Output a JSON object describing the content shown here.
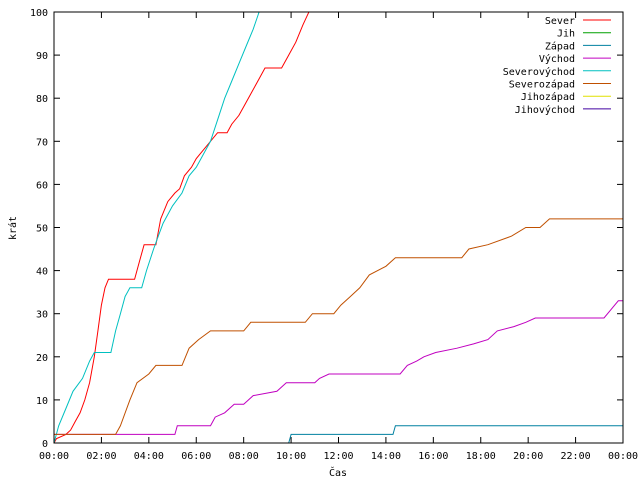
{
  "chart_data": {
    "type": "line",
    "title": "",
    "xlabel": "Čas",
    "ylabel": "krát",
    "xlim": [
      0,
      24
    ],
    "ylim": [
      0,
      100
    ],
    "grid": false,
    "legend_position": "top-right",
    "x_ticks": [
      {
        "value": 0,
        "label": "00:00"
      },
      {
        "value": 2,
        "label": "02:00"
      },
      {
        "value": 4,
        "label": "04:00"
      },
      {
        "value": 6,
        "label": "06:00"
      },
      {
        "value": 8,
        "label": "08:00"
      },
      {
        "value": 10,
        "label": "10:00"
      },
      {
        "value": 12,
        "label": "12:00"
      },
      {
        "value": 14,
        "label": "14:00"
      },
      {
        "value": 16,
        "label": "16:00"
      },
      {
        "value": 18,
        "label": "18:00"
      },
      {
        "value": 20,
        "label": "20:00"
      },
      {
        "value": 22,
        "label": "22:00"
      },
      {
        "value": 24,
        "label": "00:00"
      }
    ],
    "y_ticks": [
      0,
      10,
      20,
      30,
      40,
      50,
      60,
      70,
      80,
      90,
      100
    ],
    "series": [
      {
        "name": "Sever",
        "color": "#ff0000",
        "points": [
          [
            0,
            0
          ],
          [
            0.1,
            1
          ],
          [
            0.5,
            2
          ],
          [
            0.7,
            3
          ],
          [
            0.9,
            5
          ],
          [
            1.1,
            7
          ],
          [
            1.3,
            10
          ],
          [
            1.5,
            14
          ],
          [
            1.7,
            20
          ],
          [
            1.85,
            26
          ],
          [
            2.0,
            32
          ],
          [
            2.15,
            36
          ],
          [
            2.3,
            38
          ],
          [
            3.4,
            38
          ],
          [
            3.6,
            42
          ],
          [
            3.8,
            46
          ],
          [
            4.3,
            46
          ],
          [
            4.5,
            52
          ],
          [
            4.8,
            56
          ],
          [
            5.1,
            58
          ],
          [
            5.3,
            59
          ],
          [
            5.5,
            62
          ],
          [
            5.8,
            64
          ],
          [
            6.0,
            66
          ],
          [
            6.3,
            68
          ],
          [
            6.6,
            70
          ],
          [
            6.9,
            72
          ],
          [
            7.3,
            72
          ],
          [
            7.5,
            74
          ],
          [
            7.8,
            76
          ],
          [
            8.0,
            78
          ],
          [
            8.3,
            81
          ],
          [
            8.6,
            84
          ],
          [
            8.9,
            87
          ],
          [
            9.6,
            87
          ],
          [
            9.9,
            90
          ],
          [
            10.2,
            93
          ],
          [
            10.5,
            97
          ],
          [
            10.75,
            100
          ],
          [
            10.9,
            103
          ]
        ]
      },
      {
        "name": "Jih",
        "color": "#00a000",
        "points": []
      },
      {
        "name": "Západ",
        "color": "#0080a0",
        "points": [
          [
            0,
            0
          ],
          [
            9.9,
            0
          ],
          [
            10.0,
            2
          ],
          [
            14.3,
            2
          ],
          [
            14.4,
            4
          ],
          [
            24,
            4
          ]
        ]
      },
      {
        "name": "Východ",
        "color": "#c000c0",
        "points": [
          [
            0,
            2
          ],
          [
            5.1,
            2
          ],
          [
            5.2,
            4
          ],
          [
            6.6,
            4
          ],
          [
            6.8,
            6
          ],
          [
            7.2,
            7
          ],
          [
            7.6,
            9
          ],
          [
            8.0,
            9
          ],
          [
            8.4,
            11
          ],
          [
            9.4,
            12
          ],
          [
            9.8,
            14
          ],
          [
            11.0,
            14
          ],
          [
            11.2,
            15
          ],
          [
            11.6,
            16
          ],
          [
            14.6,
            16
          ],
          [
            14.9,
            18
          ],
          [
            15.3,
            19
          ],
          [
            15.6,
            20
          ],
          [
            16.1,
            21
          ],
          [
            17.0,
            22
          ],
          [
            17.7,
            23
          ],
          [
            18.3,
            24
          ],
          [
            18.7,
            26
          ],
          [
            19.4,
            27
          ],
          [
            19.9,
            28
          ],
          [
            20.3,
            29
          ],
          [
            23.2,
            29
          ],
          [
            23.5,
            31
          ],
          [
            23.8,
            33
          ],
          [
            24,
            33
          ]
        ]
      },
      {
        "name": "Severovýchod",
        "color": "#00c0c0",
        "points": [
          [
            0,
            0
          ],
          [
            0.2,
            4
          ],
          [
            0.5,
            8
          ],
          [
            0.8,
            12
          ],
          [
            1.2,
            15
          ],
          [
            1.5,
            19
          ],
          [
            1.7,
            21
          ],
          [
            2.4,
            21
          ],
          [
            2.6,
            26
          ],
          [
            2.8,
            30
          ],
          [
            3.0,
            34
          ],
          [
            3.2,
            36
          ],
          [
            3.7,
            36
          ],
          [
            3.9,
            40
          ],
          [
            4.2,
            45
          ],
          [
            4.4,
            48
          ],
          [
            4.6,
            51
          ],
          [
            5.0,
            55
          ],
          [
            5.4,
            58
          ],
          [
            5.7,
            62
          ],
          [
            6.0,
            64
          ],
          [
            6.3,
            67
          ],
          [
            6.6,
            70
          ],
          [
            6.9,
            75
          ],
          [
            7.2,
            80
          ],
          [
            7.5,
            84
          ],
          [
            7.8,
            88
          ],
          [
            8.1,
            92
          ],
          [
            8.4,
            96
          ],
          [
            8.65,
            100
          ],
          [
            8.9,
            104
          ]
        ]
      },
      {
        "name": "Severozápad",
        "color": "#c05000",
        "points": [
          [
            0,
            2
          ],
          [
            2.6,
            2
          ],
          [
            2.8,
            4
          ],
          [
            3.2,
            10
          ],
          [
            3.5,
            14
          ],
          [
            4.0,
            16
          ],
          [
            4.3,
            18
          ],
          [
            5.4,
            18
          ],
          [
            5.7,
            22
          ],
          [
            6.1,
            24
          ],
          [
            6.6,
            26
          ],
          [
            8.0,
            26
          ],
          [
            8.3,
            28
          ],
          [
            10.6,
            28
          ],
          [
            10.9,
            30
          ],
          [
            11.8,
            30
          ],
          [
            12.1,
            32
          ],
          [
            12.5,
            34
          ],
          [
            12.9,
            36
          ],
          [
            13.3,
            39
          ],
          [
            14.0,
            41
          ],
          [
            14.4,
            43
          ],
          [
            17.2,
            43
          ],
          [
            17.5,
            45
          ],
          [
            18.3,
            46
          ],
          [
            19.3,
            48
          ],
          [
            19.9,
            50
          ],
          [
            20.5,
            50
          ],
          [
            20.9,
            52
          ],
          [
            24,
            52
          ]
        ]
      },
      {
        "name": "Jihozápad",
        "color": "#e0e000",
        "points": []
      },
      {
        "name": "Jihovýchod",
        "color": "#4000a0",
        "points": []
      }
    ]
  }
}
